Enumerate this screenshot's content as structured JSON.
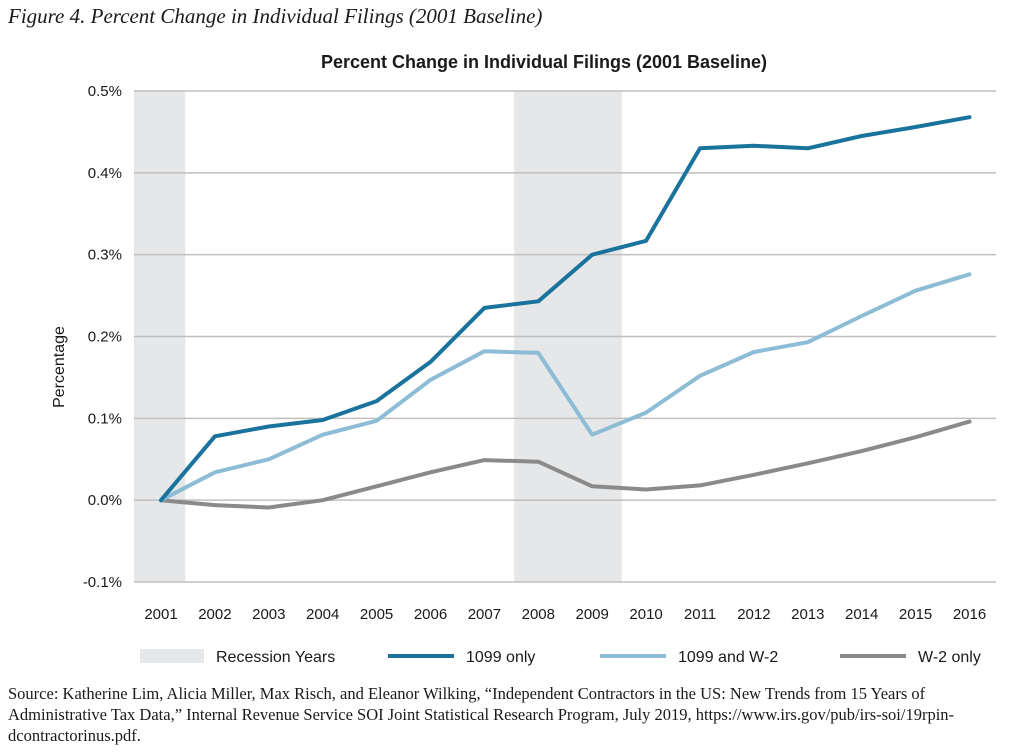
{
  "figure_caption": "Figure 4. Percent Change in Individual Filings (2001 Baseline)",
  "source_text": "Source: Katherine Lim, Alicia Miller, Max Risch, and Eleanor Wilking, “Independent Contractors in the US: New Trends from 15 Years of Administrative Tax Data,” Internal Revenue Service SOI Joint Statistical Research Program, July 2019, https://www.irs.gov/pub/irs-soi/19rpin-dcontractorinus.pdf.",
  "colors": {
    "s1099": "#1a739c",
    "s1099w2": "#8cbcd6",
    "sw2": "#8a8a8a",
    "recession": "#e6e7e8",
    "grid": "#bfbfbf"
  },
  "chart_data": {
    "type": "line",
    "title": "Percent Change in Individual Filings (2001 Baseline)",
    "xlabel": "",
    "ylabel": "Percentage",
    "categories": [
      "2001",
      "2002",
      "2003",
      "2004",
      "2005",
      "2006",
      "2007",
      "2008",
      "2009",
      "2010",
      "2011",
      "2012",
      "2013",
      "2014",
      "2015",
      "2016"
    ],
    "ylim": [
      -0.1,
      0.5
    ],
    "yticks": [
      0.5,
      0.4,
      0.3,
      0.2,
      0.1,
      0.0,
      -0.1
    ],
    "ytick_labels": [
      "0.5%",
      "0.4%",
      "0.3%",
      "0.2%",
      "0.1%",
      "0.0%",
      "-0.1%"
    ],
    "grid": true,
    "recession_label": "Recession Years",
    "recessions": [
      [
        2001,
        2001.45
      ],
      [
        2007.55,
        2009.55
      ]
    ],
    "series": [
      {
        "name": "1099 only",
        "color_key": "s1099",
        "values": [
          0.0,
          0.078,
          0.09,
          0.098,
          0.121,
          0.169,
          0.235,
          0.243,
          0.3,
          0.317,
          0.43,
          0.433,
          0.43,
          0.445,
          0.456,
          0.468
        ]
      },
      {
        "name": "1099 and W-2",
        "color_key": "s1099w2",
        "values": [
          0.0,
          0.034,
          0.05,
          0.08,
          0.097,
          0.147,
          0.182,
          0.18,
          0.08,
          0.107,
          0.152,
          0.181,
          0.193,
          0.225,
          0.256,
          0.276
        ]
      },
      {
        "name": "W-2 only",
        "color_key": "sw2",
        "values": [
          0.0,
          -0.006,
          -0.009,
          0.0,
          0.017,
          0.034,
          0.049,
          0.047,
          0.017,
          0.013,
          0.018,
          0.031,
          0.045,
          0.06,
          0.077,
          0.096
        ]
      }
    ],
    "legend_position": "bottom"
  }
}
